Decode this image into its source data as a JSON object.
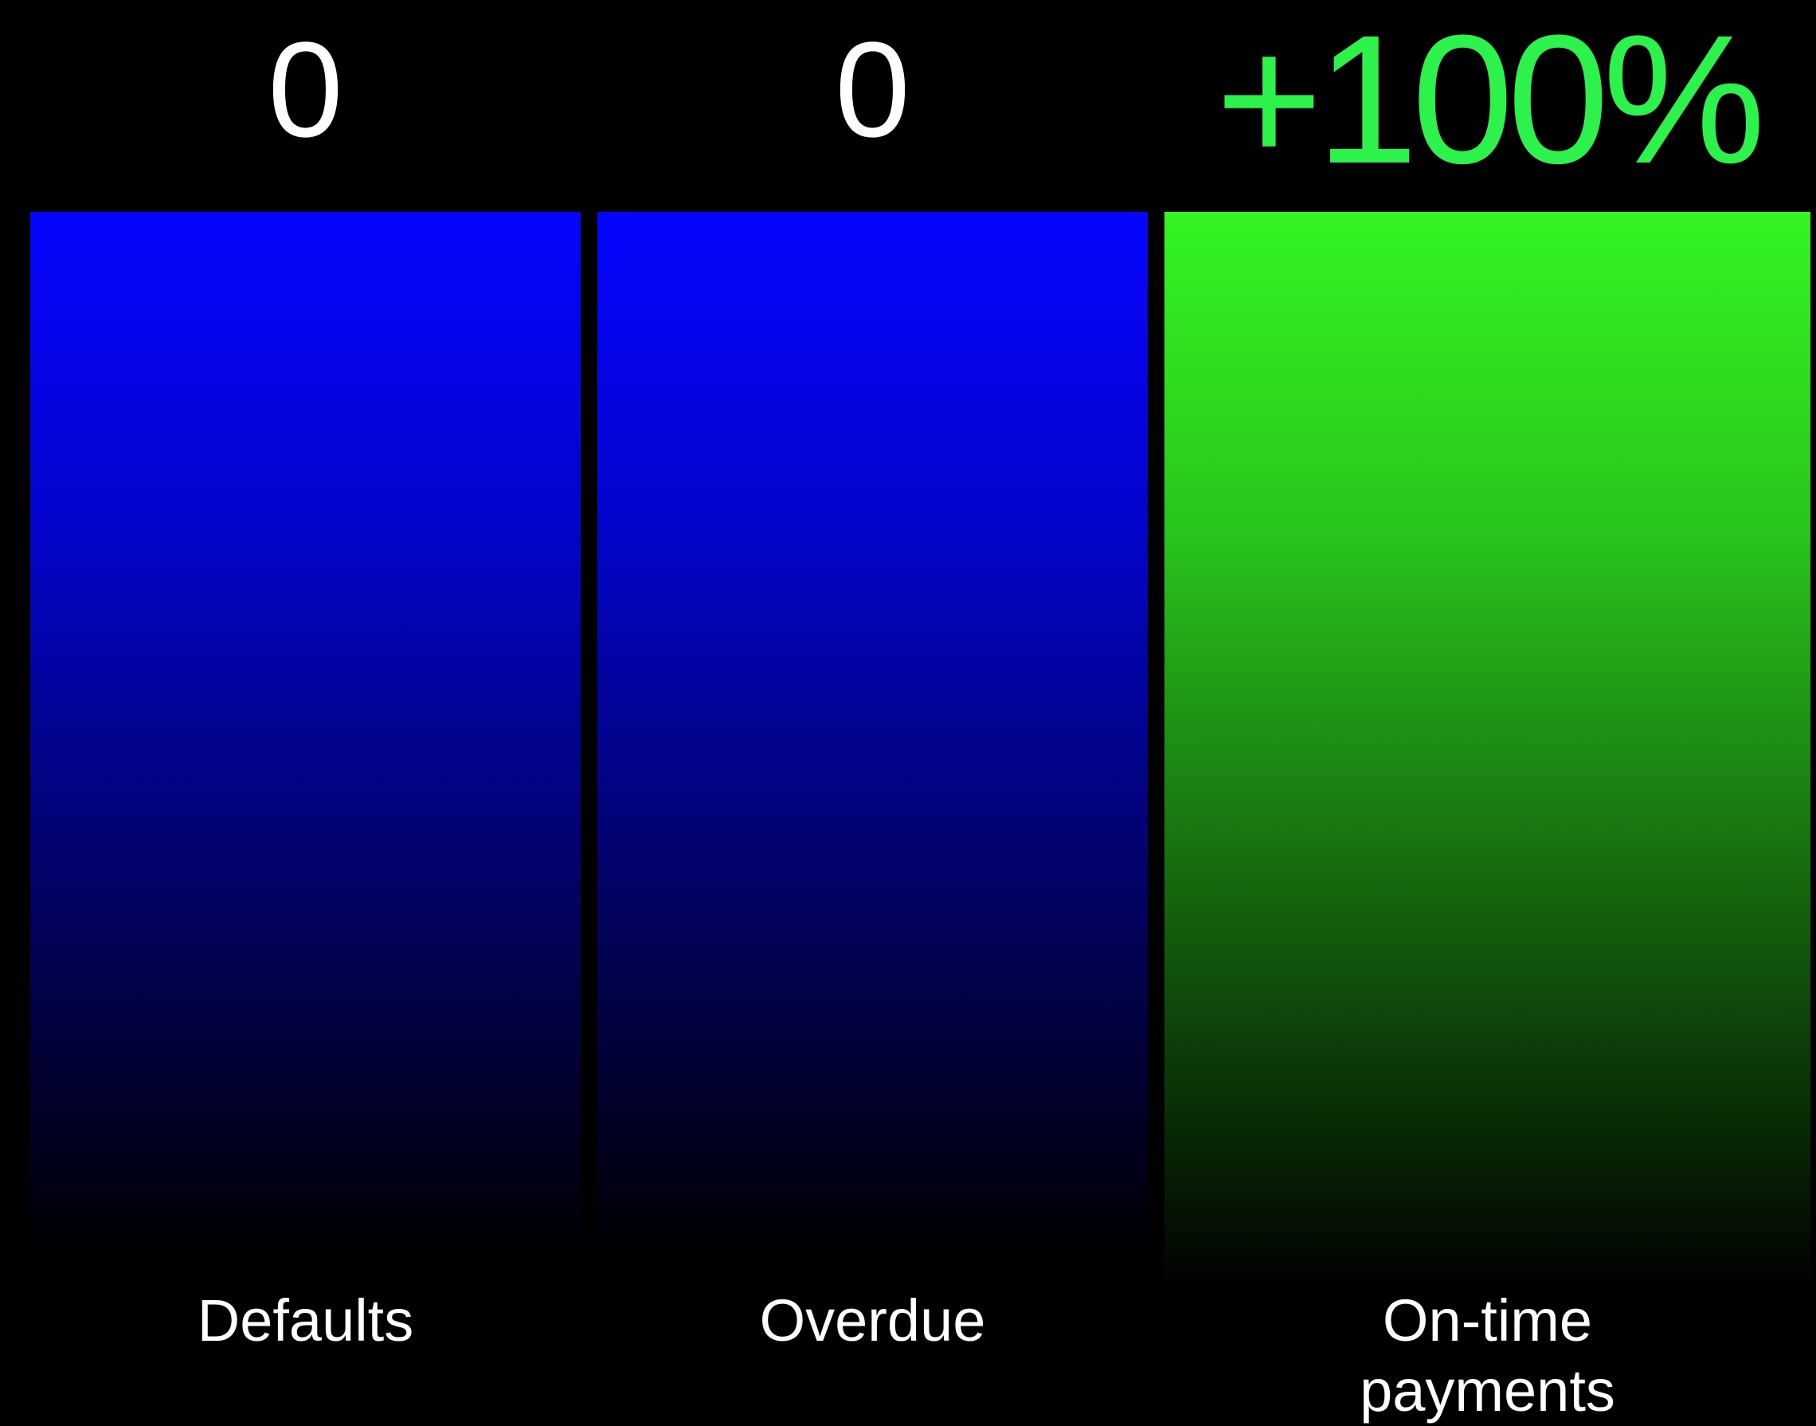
{
  "chart_data": {
    "type": "bar",
    "categories": [
      "Defaults",
      "Overdue",
      "On-time\npayments"
    ],
    "values": [
      0,
      0,
      100
    ],
    "value_labels": [
      "0",
      "0",
      "+100%"
    ],
    "grid": false,
    "legend": "none"
  },
  "colors": {
    "background": "#000000",
    "bar_blue": "#0505ff",
    "bar_green": "#33f522",
    "label_green": "#2ef24c",
    "text": "#ffffff"
  }
}
